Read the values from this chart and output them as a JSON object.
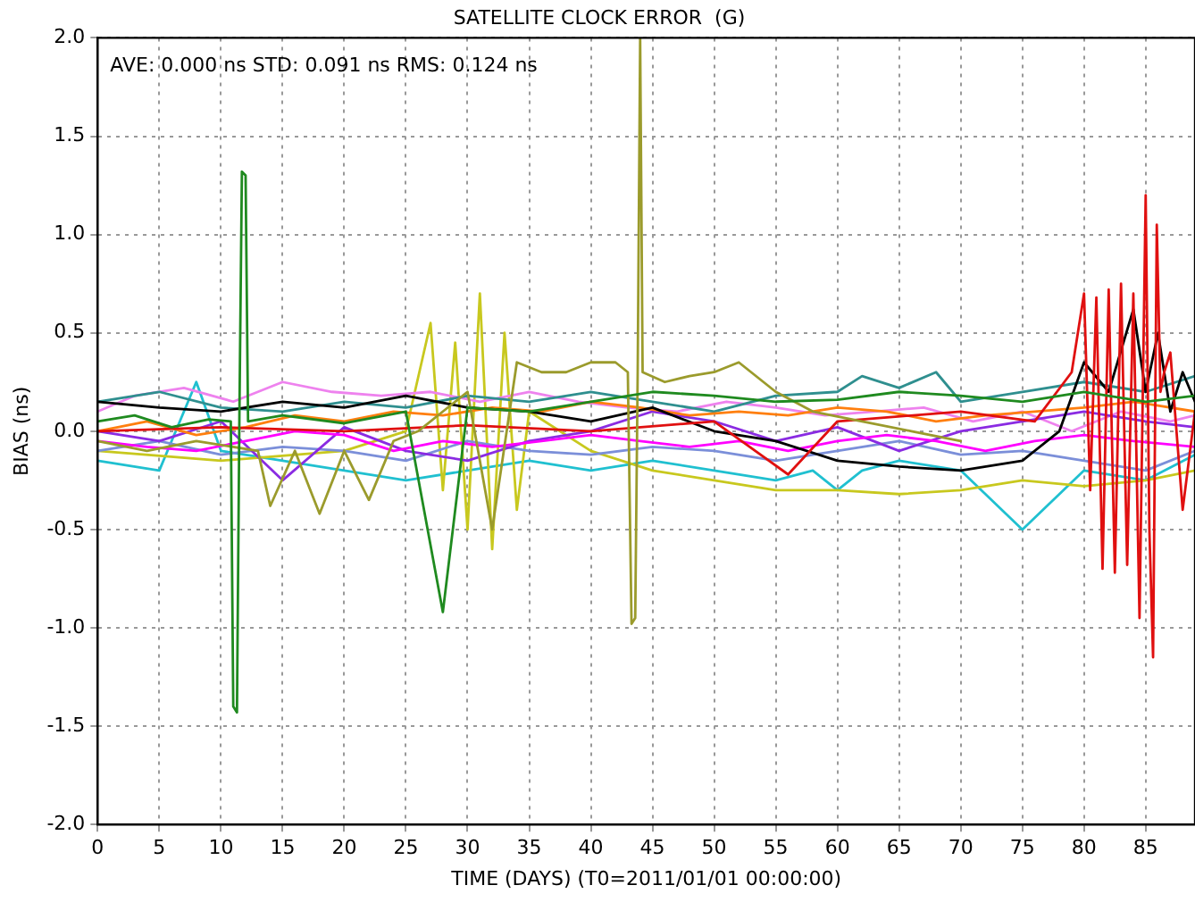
{
  "chart_data": {
    "type": "line",
    "title": "SATELLITE CLOCK ERROR  (G)",
    "xlabel": "TIME (DAYS) (T0=2011/01/01 00:00:00)",
    "ylabel": "BIAS (ns)",
    "annotations": [
      "AVE: 0.000 ns STD: 0.091 ns RMS: 0.124 ns"
    ],
    "xlim": [
      0,
      89
    ],
    "xticks": [
      0,
      5,
      10,
      15,
      20,
      25,
      30,
      35,
      40,
      45,
      50,
      55,
      60,
      65,
      70,
      75,
      80,
      85
    ],
    "ylim": [
      -2.0,
      2.0
    ],
    "yticks": [
      {
        "value": -2,
        "label": "-2.0"
      },
      {
        "value": -1.5,
        "label": "-1.5"
      },
      {
        "value": -1,
        "label": "-1.0"
      },
      {
        "value": -0.5,
        "label": "-0.5"
      },
      {
        "value": 0,
        "label": "0.0"
      },
      {
        "value": 0.5,
        "label": "0.5"
      },
      {
        "value": 1,
        "label": "1.0"
      },
      {
        "value": 1.5,
        "label": "1.5"
      },
      {
        "value": 2,
        "label": "2.0"
      }
    ],
    "grid": true,
    "legend": false,
    "marker": "none",
    "line_style": "solid",
    "series": [
      {
        "color": "#1f8a1f",
        "x": [
          0,
          3,
          6,
          9,
          10.8,
          11.0,
          11.3,
          11.5,
          11.7,
          12.0,
          12.2,
          15,
          20,
          25,
          28,
          30,
          35,
          40,
          45,
          50,
          55,
          60,
          65,
          70,
          75,
          80,
          85,
          89
        ],
        "values": [
          0.05,
          0.08,
          0.02,
          0.06,
          0.05,
          -1.4,
          -1.43,
          0.1,
          1.32,
          1.3,
          0.05,
          0.08,
          0.04,
          0.1,
          -0.92,
          0.12,
          0.1,
          0.15,
          0.2,
          0.18,
          0.15,
          0.16,
          0.2,
          0.18,
          0.15,
          0.2,
          0.15,
          0.18
        ]
      },
      {
        "color": "#9b9b2c",
        "x": [
          0,
          4,
          8,
          13,
          14,
          16,
          18,
          20,
          22,
          24,
          26,
          28,
          30,
          32,
          34,
          36,
          38,
          40,
          42,
          43.0,
          43.3,
          43.6,
          43.8,
          44.0,
          44.2,
          46,
          48,
          50,
          52,
          55,
          58,
          62,
          66,
          70
        ],
        "values": [
          -0.05,
          -0.1,
          -0.05,
          -0.1,
          -0.38,
          -0.1,
          -0.42,
          -0.1,
          -0.35,
          -0.05,
          0.0,
          0.1,
          0.2,
          -0.5,
          0.35,
          0.3,
          0.3,
          0.35,
          0.35,
          0.3,
          -0.98,
          -0.95,
          0.3,
          2.0,
          0.3,
          0.25,
          0.28,
          0.3,
          0.35,
          0.2,
          0.1,
          0.05,
          0.0,
          -0.05
        ]
      },
      {
        "color": "#e01010",
        "x": [
          0,
          10,
          20,
          30,
          40,
          50,
          56,
          60,
          70,
          76,
          79,
          80,
          80.5,
          81,
          81.5,
          82,
          82.5,
          83,
          83.5,
          84,
          84.5,
          85,
          85.3,
          85.6,
          85.9,
          86.2,
          86.5,
          87,
          88,
          89
        ],
        "values": [
          0.0,
          0.02,
          0.0,
          0.03,
          0.0,
          0.05,
          -0.22,
          0.05,
          0.1,
          0.05,
          0.3,
          0.7,
          -0.3,
          0.68,
          -0.7,
          0.72,
          -0.72,
          0.75,
          -0.68,
          0.7,
          -0.95,
          1.2,
          -0.5,
          -1.15,
          1.05,
          0.2,
          0.3,
          0.4,
          -0.4,
          0.1
        ]
      },
      {
        "color": "#000000",
        "x": [
          0,
          5,
          10,
          15,
          20,
          25,
          30,
          35,
          40,
          45,
          50,
          55,
          60,
          65,
          70,
          75,
          78,
          80,
          82,
          84,
          85,
          86,
          87,
          88,
          89
        ],
        "values": [
          0.15,
          0.12,
          0.1,
          0.15,
          0.12,
          0.18,
          0.12,
          0.1,
          0.05,
          0.12,
          0.0,
          -0.05,
          -0.15,
          -0.18,
          -0.2,
          -0.15,
          0.0,
          0.35,
          0.2,
          0.62,
          0.2,
          0.5,
          0.1,
          0.3,
          0.15
        ]
      },
      {
        "color": "#ff7f0e",
        "x": [
          0,
          4,
          8,
          12,
          16,
          20,
          24,
          28,
          32,
          36,
          40,
          44,
          48,
          52,
          56,
          60,
          64,
          68,
          72,
          76,
          80,
          84,
          89
        ],
        "values": [
          0.0,
          0.05,
          -0.02,
          0.02,
          0.08,
          0.05,
          0.1,
          0.08,
          0.12,
          0.1,
          0.15,
          0.12,
          0.08,
          0.1,
          0.08,
          0.12,
          0.1,
          0.05,
          0.08,
          0.1,
          0.12,
          0.15,
          0.1
        ]
      },
      {
        "color": "#ff00ff",
        "x": [
          0,
          4,
          8,
          12,
          16,
          20,
          24,
          28,
          32,
          36,
          40,
          44,
          48,
          52,
          56,
          60,
          64,
          68,
          72,
          76,
          80,
          84,
          89
        ],
        "values": [
          -0.05,
          -0.08,
          -0.1,
          -0.05,
          0.0,
          -0.02,
          -0.1,
          -0.05,
          -0.08,
          -0.05,
          -0.02,
          -0.05,
          -0.08,
          -0.05,
          -0.1,
          -0.05,
          -0.02,
          -0.05,
          -0.1,
          -0.05,
          -0.02,
          -0.05,
          -0.08
        ]
      },
      {
        "color": "#8a2be2",
        "x": [
          0,
          5,
          10,
          15,
          20,
          25,
          30,
          35,
          40,
          45,
          50,
          55,
          60,
          65,
          70,
          75,
          80,
          85,
          89
        ],
        "values": [
          0.0,
          -0.05,
          0.05,
          -0.25,
          0.02,
          -0.1,
          -0.15,
          -0.05,
          0.0,
          0.1,
          0.05,
          -0.05,
          0.02,
          -0.1,
          0.0,
          0.05,
          0.1,
          0.05,
          0.02
        ]
      },
      {
        "color": "#2f8f8f",
        "x": [
          0,
          5,
          10,
          15,
          20,
          25,
          30,
          35,
          40,
          45,
          50,
          55,
          60,
          62,
          65,
          68,
          70,
          75,
          80,
          85,
          89
        ],
        "values": [
          0.15,
          0.2,
          0.12,
          0.1,
          0.15,
          0.12,
          0.18,
          0.15,
          0.2,
          0.15,
          0.1,
          0.18,
          0.2,
          0.28,
          0.22,
          0.3,
          0.15,
          0.2,
          0.25,
          0.2,
          0.28
        ]
      },
      {
        "color": "#ee82ee",
        "x": [
          0,
          3,
          7,
          11,
          15,
          19,
          23,
          27,
          31,
          35,
          39,
          43,
          47,
          51,
          55,
          59,
          63,
          67,
          71,
          75,
          79,
          83,
          87,
          89
        ],
        "values": [
          0.1,
          0.18,
          0.22,
          0.15,
          0.25,
          0.2,
          0.18,
          0.2,
          0.15,
          0.2,
          0.15,
          0.12,
          0.1,
          0.15,
          0.12,
          0.08,
          0.1,
          0.12,
          0.05,
          0.1,
          0.0,
          0.1,
          0.05,
          0.08
        ]
      },
      {
        "color": "#7b8fd9",
        "x": [
          0,
          5,
          10,
          15,
          20,
          25,
          30,
          35,
          40,
          45,
          50,
          55,
          60,
          65,
          70,
          75,
          80,
          85,
          89
        ],
        "values": [
          -0.1,
          -0.05,
          -0.12,
          -0.08,
          -0.1,
          -0.15,
          -0.05,
          -0.1,
          -0.12,
          -0.08,
          -0.1,
          -0.15,
          -0.1,
          -0.05,
          -0.12,
          -0.1,
          -0.15,
          -0.2,
          -0.1
        ]
      },
      {
        "color": "#c8c81e",
        "x": [
          0,
          10,
          20,
          25,
          27,
          28,
          29,
          30,
          31,
          32,
          33,
          34,
          35,
          40,
          45,
          50,
          55,
          60,
          65,
          70,
          75,
          80,
          85,
          89
        ],
        "values": [
          -0.1,
          -0.15,
          -0.1,
          0.0,
          0.55,
          -0.3,
          0.45,
          -0.5,
          0.7,
          -0.6,
          0.5,
          -0.4,
          0.1,
          -0.1,
          -0.2,
          -0.25,
          -0.3,
          -0.3,
          -0.32,
          -0.3,
          -0.25,
          -0.28,
          -0.25,
          -0.2
        ]
      },
      {
        "color": "#20c0d0",
        "x": [
          0,
          5,
          8,
          10,
          15,
          20,
          25,
          30,
          35,
          40,
          45,
          50,
          55,
          58,
          60,
          62,
          65,
          70,
          75,
          80,
          85,
          89
        ],
        "values": [
          -0.15,
          -0.2,
          0.25,
          -0.1,
          -0.15,
          -0.2,
          -0.25,
          -0.2,
          -0.15,
          -0.2,
          -0.15,
          -0.2,
          -0.25,
          -0.2,
          -0.3,
          -0.2,
          -0.15,
          -0.2,
          -0.5,
          -0.2,
          -0.25,
          -0.12
        ]
      }
    ]
  }
}
